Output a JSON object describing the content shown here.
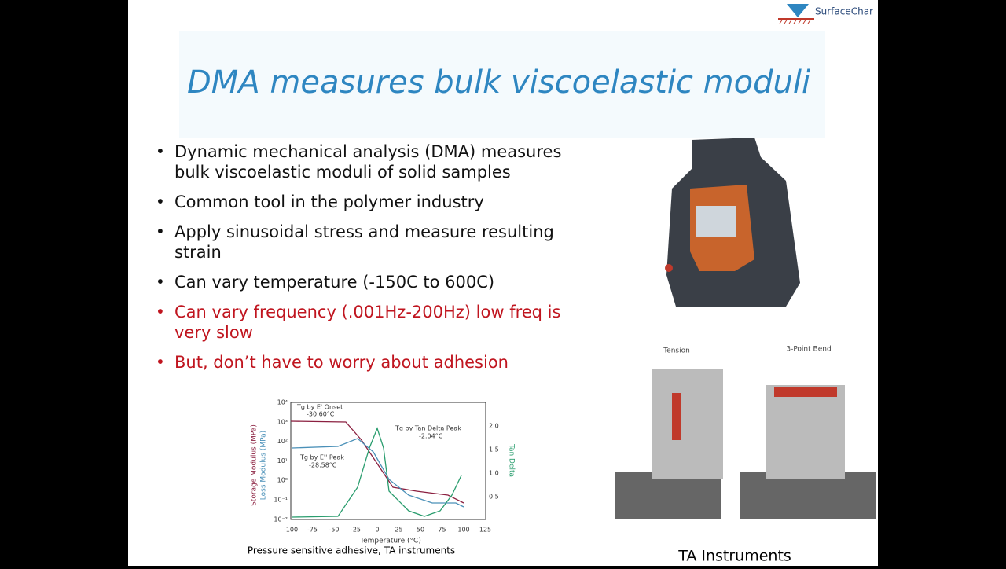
{
  "header": {
    "logo": "SurfaceChar",
    "title": "DMA measures bulk viscoelastic moduli"
  },
  "bullets": [
    {
      "lines": [
        "Dynamic mechanical analysis (DMA) measures",
        "bulk viscoelastic moduli of solid samples"
      ]
    },
    {
      "lines": [
        "Common tool in the polymer industry"
      ]
    },
    {
      "lines": [
        "Apply sinusoidal stress and measure resulting",
        "strain"
      ]
    },
    {
      "lines": [
        "Can vary temperature (-150C to 600C)"
      ]
    },
    {
      "lines": [
        "Can vary frequency (.001Hz-200Hz) low freq is",
        "very slow"
      ]
    },
    {
      "lines": [
        "But, don’t have to worry about adhesion"
      ]
    }
  ],
  "figure": {
    "y_label_storage": "Storage Modulus (MPa)",
    "y_label_loss": "Loss Modulus (MPa)",
    "y2_label": "Tan Delta",
    "x_label": "Temperature (°C)",
    "x_ticks": [
      "-100",
      "-75",
      "-50",
      "-25",
      "0",
      "25",
      "50",
      "75",
      "100",
      "125"
    ],
    "y_ticks": [
      "10⁴",
      "10³",
      "10²",
      "10¹",
      "10⁰",
      "10⁻¹",
      "10⁻²"
    ],
    "y2_ticks": [
      "2.0",
      "1.5",
      "1.0",
      "0.5"
    ],
    "annotations": [
      "Tg by E' Onset",
      "-30.60°C",
      "Tg by Tan Delta Peak",
      "-2.04°C",
      "Tg by E'' Peak",
      "-28.58°C"
    ],
    "caption": "Pressure sensitive adhesive, TA instruments"
  },
  "photos": {
    "tension": "Tension",
    "bend": "3-Point Bend",
    "credit": "TA Instruments"
  }
}
